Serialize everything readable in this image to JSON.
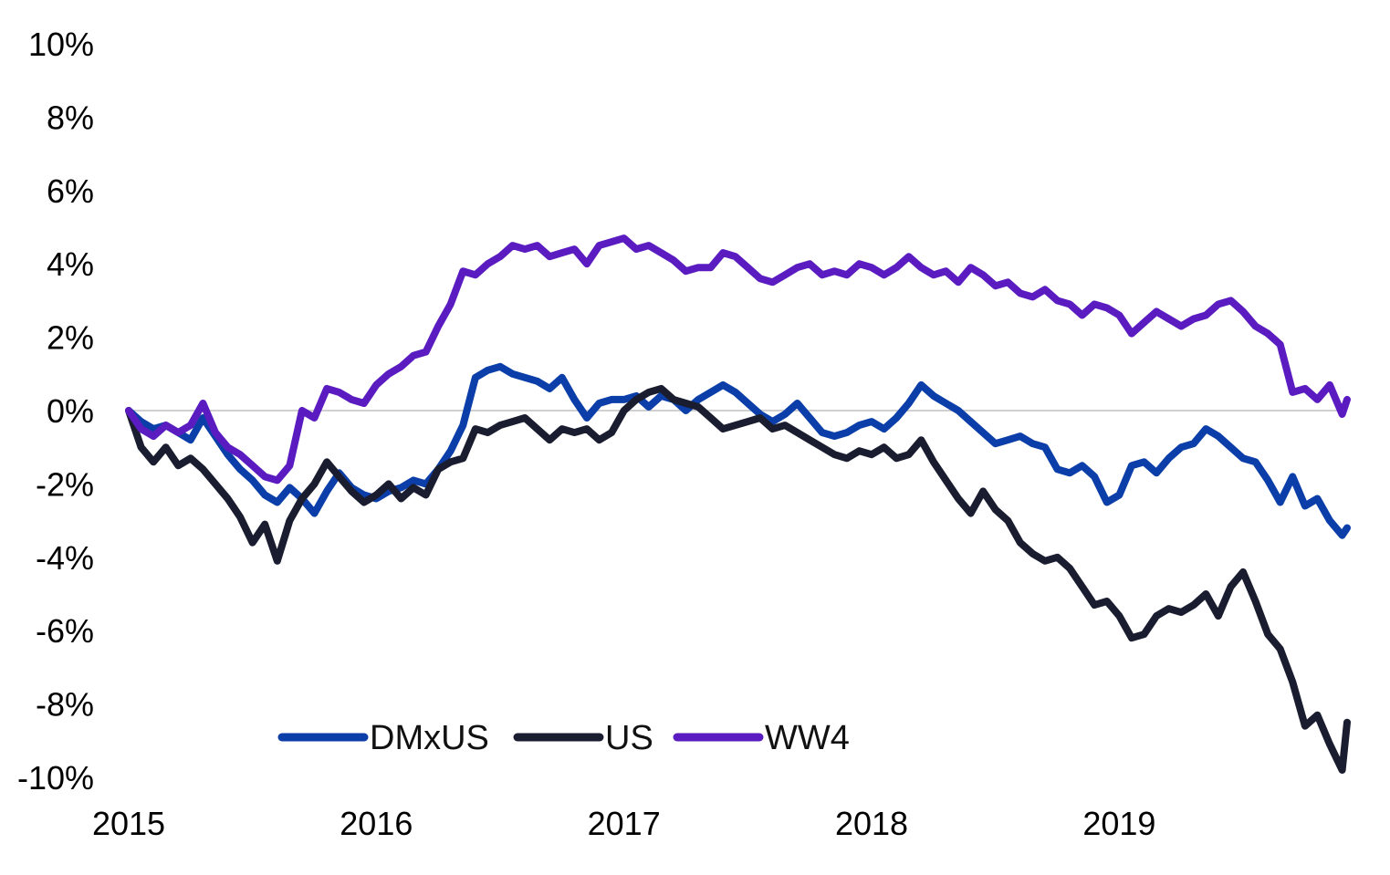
{
  "chart_data": {
    "type": "line",
    "title": "",
    "xlabel": "",
    "ylabel": "",
    "x_range": [
      2015.0,
      2019.92
    ],
    "ylim": [
      -10,
      10
    ],
    "y_ticks": [
      10,
      8,
      6,
      4,
      2,
      0,
      -2,
      -4,
      -6,
      -8,
      -10
    ],
    "y_tick_labels": [
      "10%",
      "8%",
      "6%",
      "4%",
      "2%",
      "0%",
      "-2%",
      "-4%",
      "-6%",
      "-8%",
      "-10%"
    ],
    "x_ticks": [
      2015,
      2016,
      2017,
      2018,
      2019
    ],
    "x_tick_labels": [
      "2015",
      "2016",
      "2017",
      "2018",
      "2019"
    ],
    "grid": false,
    "zero_line": true,
    "legend_position": "bottom-center",
    "series": [
      {
        "name": "DMxUS",
        "color": "#0b3ea8",
        "x": [
          2015.0,
          2015.05,
          2015.1,
          2015.15,
          2015.2,
          2015.25,
          2015.3,
          2015.35,
          2015.4,
          2015.45,
          2015.5,
          2015.55,
          2015.6,
          2015.65,
          2015.7,
          2015.75,
          2015.8,
          2015.85,
          2015.9,
          2015.95,
          2016.0,
          2016.05,
          2016.1,
          2016.15,
          2016.2,
          2016.25,
          2016.3,
          2016.35,
          2016.4,
          2016.45,
          2016.5,
          2016.55,
          2016.6,
          2016.65,
          2016.7,
          2016.75,
          2016.8,
          2016.85,
          2016.9,
          2016.95,
          2017.0,
          2017.05,
          2017.1,
          2017.15,
          2017.2,
          2017.25,
          2017.3,
          2017.35,
          2017.4,
          2017.45,
          2017.5,
          2017.55,
          2017.6,
          2017.65,
          2017.7,
          2017.75,
          2017.8,
          2017.85,
          2017.9,
          2017.95,
          2018.0,
          2018.05,
          2018.1,
          2018.15,
          2018.2,
          2018.25,
          2018.3,
          2018.35,
          2018.4,
          2018.45,
          2018.5,
          2018.55,
          2018.6,
          2018.65,
          2018.7,
          2018.75,
          2018.8,
          2018.85,
          2018.9,
          2018.95,
          2019.0,
          2019.05,
          2019.1,
          2019.15,
          2019.2,
          2019.25,
          2019.3,
          2019.35,
          2019.4,
          2019.45,
          2019.5,
          2019.55,
          2019.6,
          2019.65,
          2019.7,
          2019.75,
          2019.8,
          2019.85,
          2019.9,
          2019.92
        ],
        "values": [
          0.0,
          -0.3,
          -0.5,
          -0.4,
          -0.6,
          -0.8,
          -0.2,
          -0.7,
          -1.2,
          -1.6,
          -1.9,
          -2.3,
          -2.5,
          -2.1,
          -2.4,
          -2.8,
          -2.2,
          -1.7,
          -2.1,
          -2.3,
          -2.4,
          -2.2,
          -2.1,
          -1.9,
          -2.0,
          -1.6,
          -1.1,
          -0.4,
          0.9,
          1.1,
          1.2,
          1.0,
          0.9,
          0.8,
          0.6,
          0.9,
          0.3,
          -0.2,
          0.2,
          0.3,
          0.3,
          0.4,
          0.1,
          0.4,
          0.3,
          0.0,
          0.3,
          0.5,
          0.7,
          0.5,
          0.2,
          -0.1,
          -0.3,
          -0.1,
          0.2,
          -0.2,
          -0.6,
          -0.7,
          -0.6,
          -0.4,
          -0.3,
          -0.5,
          -0.2,
          0.2,
          0.7,
          0.4,
          0.2,
          0.0,
          -0.3,
          -0.6,
          -0.9,
          -0.8,
          -0.7,
          -0.9,
          -1.0,
          -1.6,
          -1.7,
          -1.5,
          -1.8,
          -2.5,
          -2.3,
          -1.5,
          -1.4,
          -1.7,
          -1.3,
          -1.0,
          -0.9,
          -0.5,
          -0.7,
          -1.0,
          -1.3,
          -1.4,
          -1.9,
          -2.5,
          -1.8,
          -2.6,
          -2.4,
          -3.0,
          -3.4,
          -3.2
        ]
      },
      {
        "name": "US",
        "color": "#1a1d30",
        "x": [
          2015.0,
          2015.05,
          2015.1,
          2015.15,
          2015.2,
          2015.25,
          2015.3,
          2015.35,
          2015.4,
          2015.45,
          2015.5,
          2015.55,
          2015.6,
          2015.65,
          2015.7,
          2015.75,
          2015.8,
          2015.85,
          2015.9,
          2015.95,
          2016.0,
          2016.05,
          2016.1,
          2016.15,
          2016.2,
          2016.25,
          2016.3,
          2016.35,
          2016.4,
          2016.45,
          2016.5,
          2016.55,
          2016.6,
          2016.65,
          2016.7,
          2016.75,
          2016.8,
          2016.85,
          2016.9,
          2016.95,
          2017.0,
          2017.05,
          2017.1,
          2017.15,
          2017.2,
          2017.25,
          2017.3,
          2017.35,
          2017.4,
          2017.45,
          2017.5,
          2017.55,
          2017.6,
          2017.65,
          2017.7,
          2017.75,
          2017.8,
          2017.85,
          2017.9,
          2017.95,
          2018.0,
          2018.05,
          2018.1,
          2018.15,
          2018.2,
          2018.25,
          2018.3,
          2018.35,
          2018.4,
          2018.45,
          2018.5,
          2018.55,
          2018.6,
          2018.65,
          2018.7,
          2018.75,
          2018.8,
          2018.85,
          2018.9,
          2018.95,
          2019.0,
          2019.05,
          2019.1,
          2019.15,
          2019.2,
          2019.25,
          2019.3,
          2019.35,
          2019.4,
          2019.45,
          2019.5,
          2019.55,
          2019.6,
          2019.65,
          2019.7,
          2019.75,
          2019.8,
          2019.85,
          2019.9,
          2019.92
        ],
        "values": [
          0.0,
          -1.0,
          -1.4,
          -1.0,
          -1.5,
          -1.3,
          -1.6,
          -2.0,
          -2.4,
          -2.9,
          -3.6,
          -3.1,
          -4.1,
          -3.0,
          -2.4,
          -2.0,
          -1.4,
          -1.8,
          -2.2,
          -2.5,
          -2.3,
          -2.0,
          -2.4,
          -2.1,
          -2.3,
          -1.6,
          -1.4,
          -1.3,
          -0.5,
          -0.6,
          -0.4,
          -0.3,
          -0.2,
          -0.5,
          -0.8,
          -0.5,
          -0.6,
          -0.5,
          -0.8,
          -0.6,
          0.0,
          0.3,
          0.5,
          0.6,
          0.3,
          0.2,
          0.1,
          -0.2,
          -0.5,
          -0.4,
          -0.3,
          -0.2,
          -0.5,
          -0.4,
          -0.6,
          -0.8,
          -1.0,
          -1.2,
          -1.3,
          -1.1,
          -1.2,
          -1.0,
          -1.3,
          -1.2,
          -0.8,
          -1.4,
          -1.9,
          -2.4,
          -2.8,
          -2.2,
          -2.7,
          -3.0,
          -3.6,
          -3.9,
          -4.1,
          -4.0,
          -4.3,
          -4.8,
          -5.3,
          -5.2,
          -5.6,
          -6.2,
          -6.1,
          -5.6,
          -5.4,
          -5.5,
          -5.3,
          -5.0,
          -5.6,
          -4.8,
          -4.4,
          -5.2,
          -6.1,
          -6.5,
          -7.4,
          -8.6,
          -8.3,
          -9.1,
          -9.8,
          -8.5
        ]
      },
      {
        "name": "WW4",
        "color": "#5a1cc0",
        "x": [
          2015.0,
          2015.05,
          2015.1,
          2015.15,
          2015.2,
          2015.25,
          2015.3,
          2015.35,
          2015.4,
          2015.45,
          2015.5,
          2015.55,
          2015.6,
          2015.65,
          2015.7,
          2015.75,
          2015.8,
          2015.85,
          2015.9,
          2015.95,
          2016.0,
          2016.05,
          2016.1,
          2016.15,
          2016.2,
          2016.25,
          2016.3,
          2016.35,
          2016.4,
          2016.45,
          2016.5,
          2016.55,
          2016.6,
          2016.65,
          2016.7,
          2016.75,
          2016.8,
          2016.85,
          2016.9,
          2016.95,
          2017.0,
          2017.05,
          2017.1,
          2017.15,
          2017.2,
          2017.25,
          2017.3,
          2017.35,
          2017.4,
          2017.45,
          2017.5,
          2017.55,
          2017.6,
          2017.65,
          2017.7,
          2017.75,
          2017.8,
          2017.85,
          2017.9,
          2017.95,
          2018.0,
          2018.05,
          2018.1,
          2018.15,
          2018.2,
          2018.25,
          2018.3,
          2018.35,
          2018.4,
          2018.45,
          2018.5,
          2018.55,
          2018.6,
          2018.65,
          2018.7,
          2018.75,
          2018.8,
          2018.85,
          2018.9,
          2018.95,
          2019.0,
          2019.05,
          2019.1,
          2019.15,
          2019.2,
          2019.25,
          2019.3,
          2019.35,
          2019.4,
          2019.45,
          2019.5,
          2019.55,
          2019.6,
          2019.65,
          2019.7,
          2019.75,
          2019.8,
          2019.85,
          2019.9,
          2019.92
        ],
        "values": [
          0.0,
          -0.5,
          -0.7,
          -0.4,
          -0.6,
          -0.4,
          0.2,
          -0.6,
          -1.0,
          -1.2,
          -1.5,
          -1.8,
          -1.9,
          -1.5,
          0.0,
          -0.2,
          0.6,
          0.5,
          0.3,
          0.2,
          0.7,
          1.0,
          1.2,
          1.5,
          1.6,
          2.3,
          2.9,
          3.8,
          3.7,
          4.0,
          4.2,
          4.5,
          4.4,
          4.5,
          4.2,
          4.3,
          4.4,
          4.0,
          4.5,
          4.6,
          4.7,
          4.4,
          4.5,
          4.3,
          4.1,
          3.8,
          3.9,
          3.9,
          4.3,
          4.2,
          3.9,
          3.6,
          3.5,
          3.7,
          3.9,
          4.0,
          3.7,
          3.8,
          3.7,
          4.0,
          3.9,
          3.7,
          3.9,
          4.2,
          3.9,
          3.7,
          3.8,
          3.5,
          3.9,
          3.7,
          3.4,
          3.5,
          3.2,
          3.1,
          3.3,
          3.0,
          2.9,
          2.6,
          2.9,
          2.8,
          2.6,
          2.1,
          2.4,
          2.7,
          2.5,
          2.3,
          2.5,
          2.6,
          2.9,
          3.0,
          2.7,
          2.3,
          2.1,
          1.8,
          0.5,
          0.6,
          0.3,
          0.7,
          -0.1,
          0.3
        ]
      }
    ]
  }
}
